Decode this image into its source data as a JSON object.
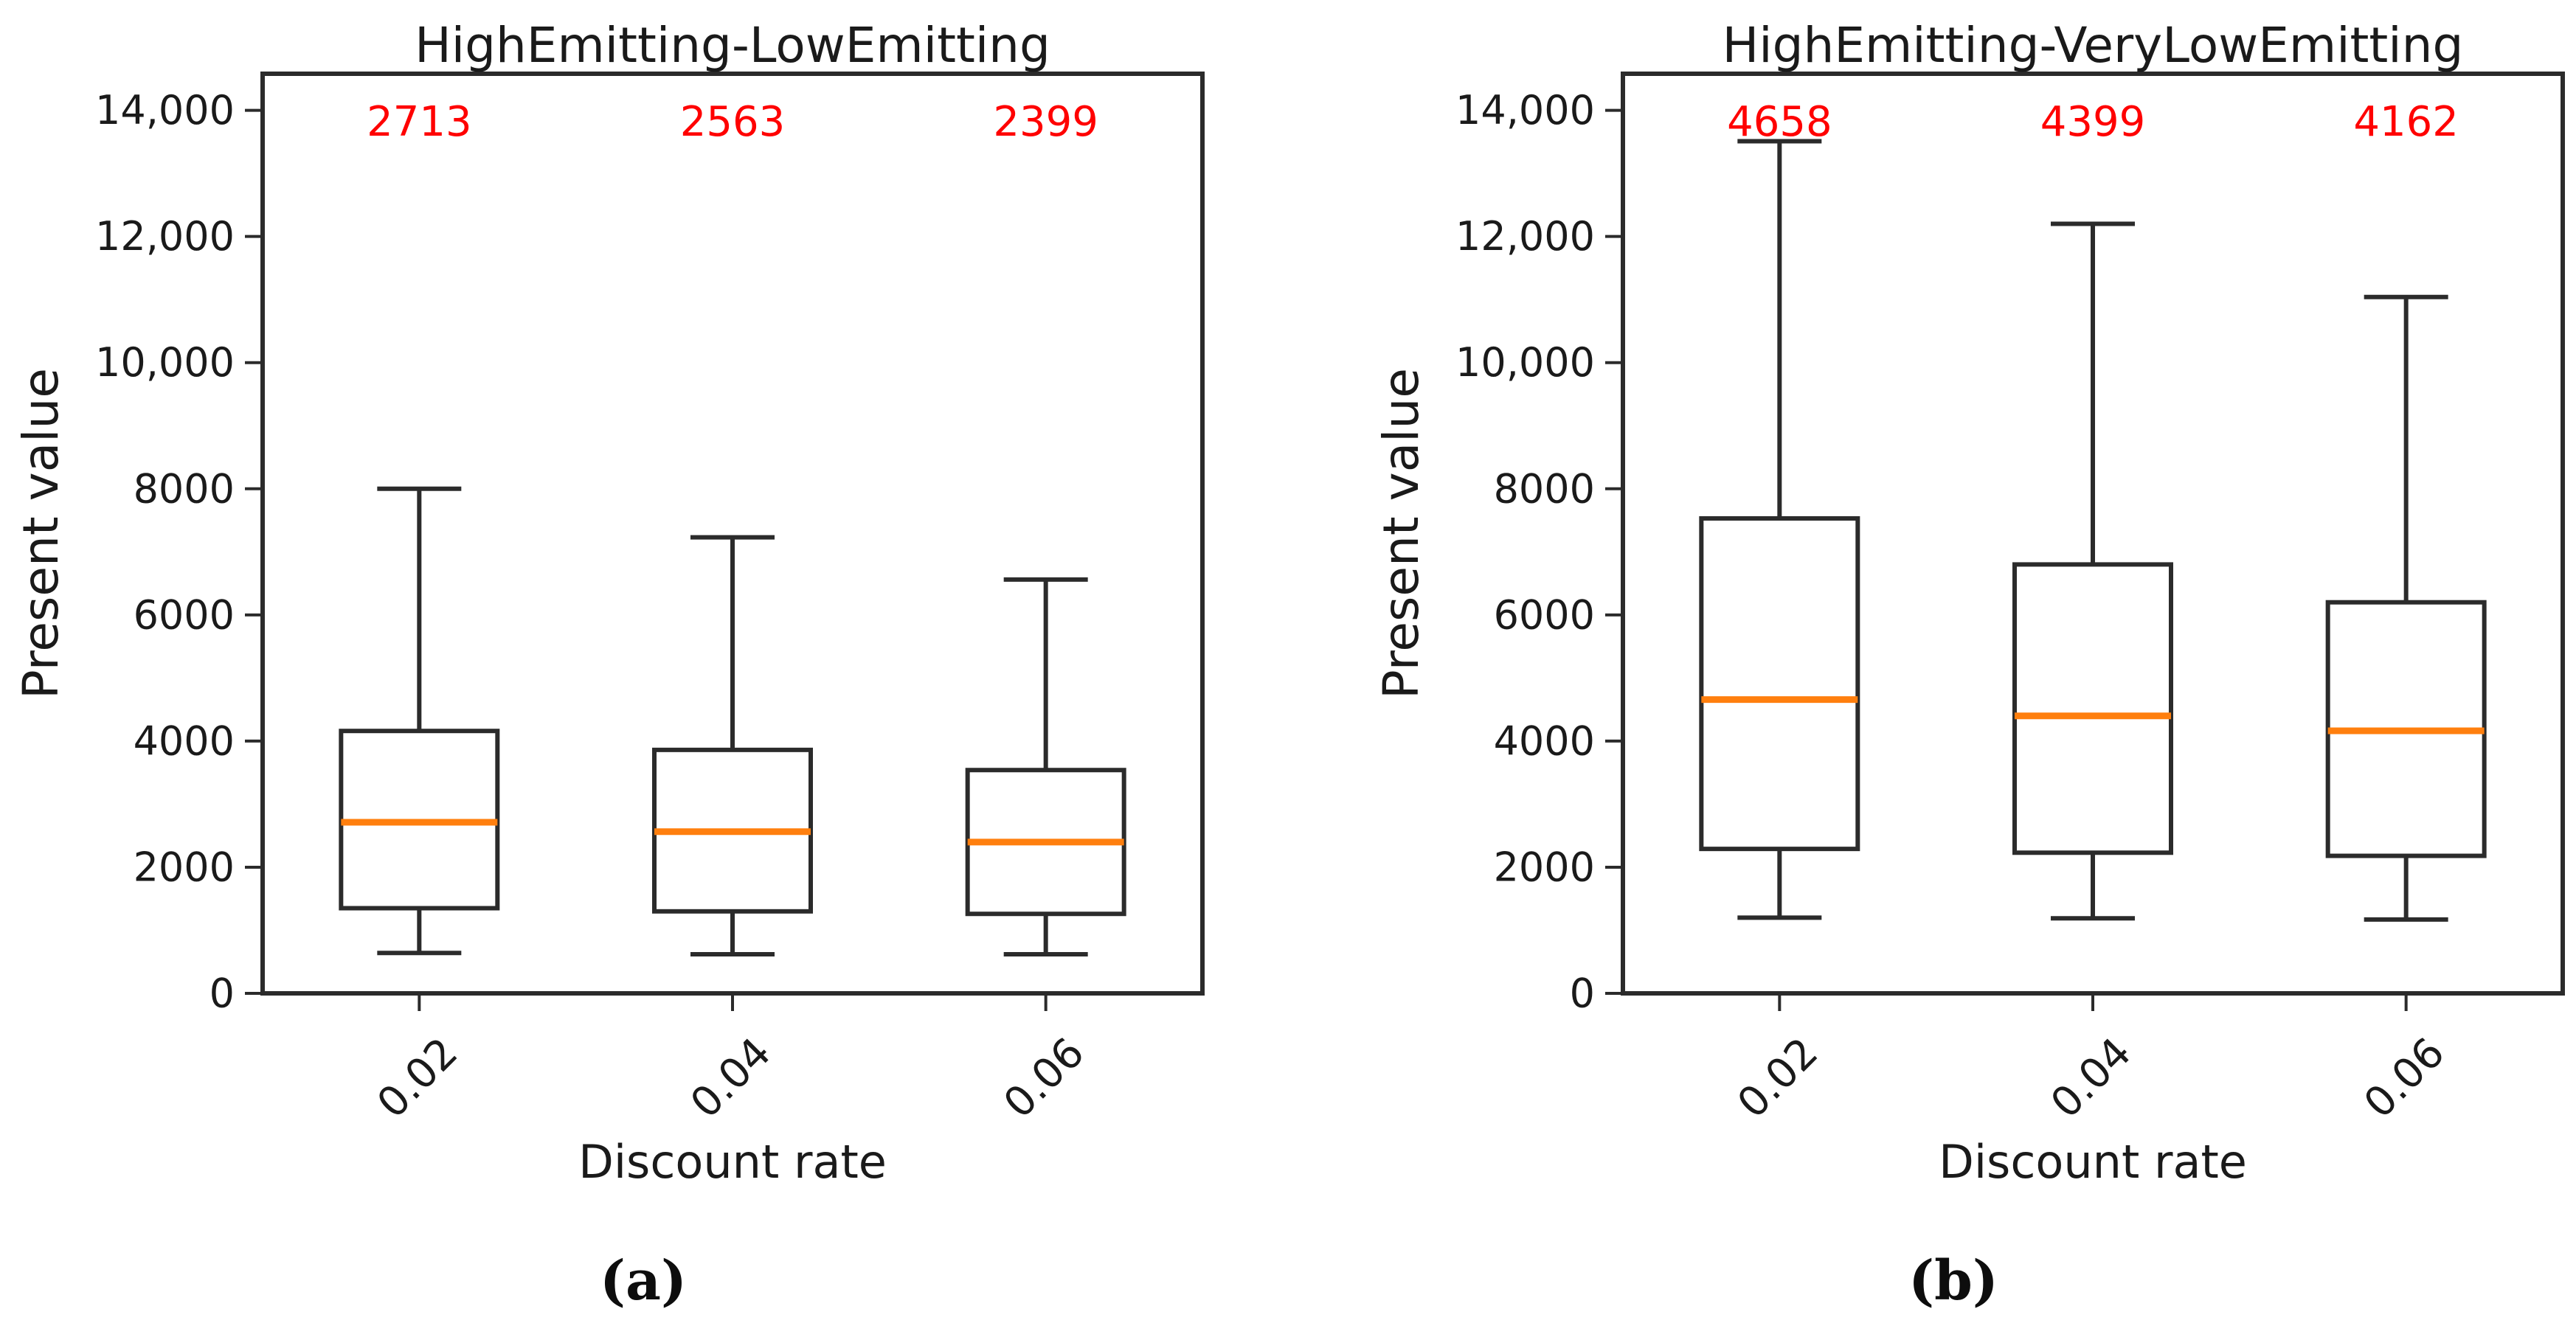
{
  "colors": {
    "background": "#ffffff",
    "box_line": "#2b2b2b",
    "median_line": "#ff7f0e",
    "annotation_text": "#ff0000",
    "axis_text": "#1a1a1a"
  },
  "chart_data": [
    {
      "type": "boxplot",
      "panel": "a",
      "panel_label": "(a)",
      "title": "HighEmitting-LowEmitting",
      "xlabel": "Discount rate",
      "ylabel": "Present value",
      "categories": [
        "0.02",
        "0.04",
        "0.06"
      ],
      "ylim": [
        0,
        14580
      ],
      "yticks": [
        0,
        2000,
        4000,
        6000,
        8000,
        10000,
        12000,
        14000
      ],
      "ytick_labels": [
        "0",
        "2000",
        "4000",
        "6000",
        "8000",
        "10,000",
        "12,000",
        "14,000"
      ],
      "grid": false,
      "median_labels": [
        "2713",
        "2563",
        "2399"
      ],
      "series": [
        {
          "category": "0.02",
          "whisker_low": 640,
          "q1": 1350,
          "median": 2713,
          "q3": 4160,
          "whisker_high": 8000
        },
        {
          "category": "0.04",
          "whisker_low": 620,
          "q1": 1300,
          "median": 2563,
          "q3": 3860,
          "whisker_high": 7230
        },
        {
          "category": "0.06",
          "whisker_low": 620,
          "q1": 1260,
          "median": 2399,
          "q3": 3540,
          "whisker_high": 6560
        }
      ]
    },
    {
      "type": "boxplot",
      "panel": "b",
      "panel_label": "(b)",
      "title": "HighEmitting-VeryLowEmitting",
      "xlabel": "Discount rate",
      "ylabel": "Present value",
      "categories": [
        "0.02",
        "0.04",
        "0.06"
      ],
      "ylim": [
        0,
        14580
      ],
      "yticks": [
        0,
        2000,
        4000,
        6000,
        8000,
        10000,
        12000,
        14000
      ],
      "ytick_labels": [
        "0",
        "2000",
        "4000",
        "6000",
        "8000",
        "10,000",
        "12,000",
        "14,000"
      ],
      "grid": false,
      "median_labels": [
        "4658",
        "4399",
        "4162"
      ],
      "series": [
        {
          "category": "0.02",
          "whisker_low": 1200,
          "q1": 2290,
          "median": 4658,
          "q3": 7530,
          "whisker_high": 13510
        },
        {
          "category": "0.04",
          "whisker_low": 1190,
          "q1": 2230,
          "median": 4399,
          "q3": 6800,
          "whisker_high": 12200
        },
        {
          "category": "0.06",
          "whisker_low": 1170,
          "q1": 2180,
          "median": 4162,
          "q3": 6200,
          "whisker_high": 11040
        }
      ]
    }
  ]
}
